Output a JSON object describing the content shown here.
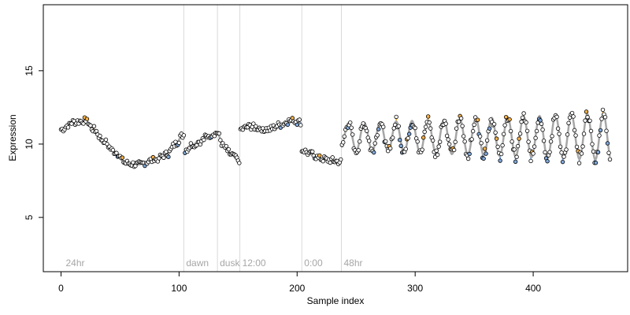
{
  "chart_data": {
    "type": "scatter",
    "title": "",
    "xlabel": "Sample index",
    "ylabel": "Expression",
    "xlim": [
      -15,
      480
    ],
    "ylim": [
      1.3,
      19.5
    ],
    "x_ticks": [
      0,
      100,
      200,
      300,
      400
    ],
    "y_ticks": [
      5,
      10,
      15
    ],
    "grid": false,
    "legend": "none",
    "colors": {
      "trend_line": "#a6a6a6",
      "point_fill": "#ffffff",
      "point_edge": "#000000",
      "above_fill": "#f5b04a",
      "below_fill": "#7fa7d9",
      "above_stem": "#f5a623",
      "below_stem": "#5b8fd6",
      "separator": "#d9d9d9",
      "annotation_text": "#a6a6a6"
    },
    "annotations": [
      {
        "x": 2,
        "text": "24hr",
        "line": false
      },
      {
        "x": 104,
        "text": "dawn",
        "line": true
      },
      {
        "x": 132.5,
        "text": "dusk",
        "line": true
      },
      {
        "x": 151.5,
        "text": "12:00",
        "line": true
      },
      {
        "x": 204,
        "text": "0:00",
        "line": true
      },
      {
        "x": 237.5,
        "text": "48hr",
        "line": true
      }
    ],
    "segments": [
      {
        "x_start": 0,
        "x_end": 104,
        "knots": [
          [
            0,
            11.0
          ],
          [
            10,
            11.5
          ],
          [
            20,
            11.6
          ],
          [
            28,
            11.0
          ],
          [
            35,
            10.3
          ],
          [
            45,
            9.5
          ],
          [
            55,
            8.7
          ],
          [
            65,
            8.6
          ],
          [
            78,
            8.9
          ],
          [
            90,
            9.3
          ],
          [
            97,
            10.0
          ],
          [
            103,
            10.6
          ]
        ]
      },
      {
        "x_start": 105,
        "x_end": 151,
        "knots": [
          [
            105,
            9.6
          ],
          [
            112,
            10.0
          ],
          [
            118,
            10.2
          ],
          [
            125,
            10.6
          ],
          [
            132,
            10.8
          ],
          [
            138,
            9.8
          ],
          [
            144,
            9.3
          ],
          [
            150,
            8.9
          ]
        ]
      },
      {
        "x_start": 152,
        "x_end": 203,
        "knots": [
          [
            152,
            11.0
          ],
          [
            160,
            11.2
          ],
          [
            168,
            11.1
          ],
          [
            176,
            11.0
          ],
          [
            185,
            11.3
          ],
          [
            195,
            11.6
          ],
          [
            203,
            11.5
          ]
        ]
      },
      {
        "x_start": 204,
        "x_end": 237,
        "knots": [
          [
            204,
            9.6
          ],
          [
            212,
            9.3
          ],
          [
            220,
            9.0
          ],
          [
            228,
            8.9
          ],
          [
            236,
            8.8
          ]
        ]
      },
      {
        "x_start": 238,
        "x_end": 465,
        "knots": [
          [
            238,
            10.5
          ],
          [
            465,
            10.5
          ]
        ],
        "wave": {
          "amp_start": 0.9,
          "amp_end": 1.6,
          "period": 13.5,
          "phase": 240
        }
      }
    ],
    "sample_count": 465,
    "point_spacing": 1
  }
}
